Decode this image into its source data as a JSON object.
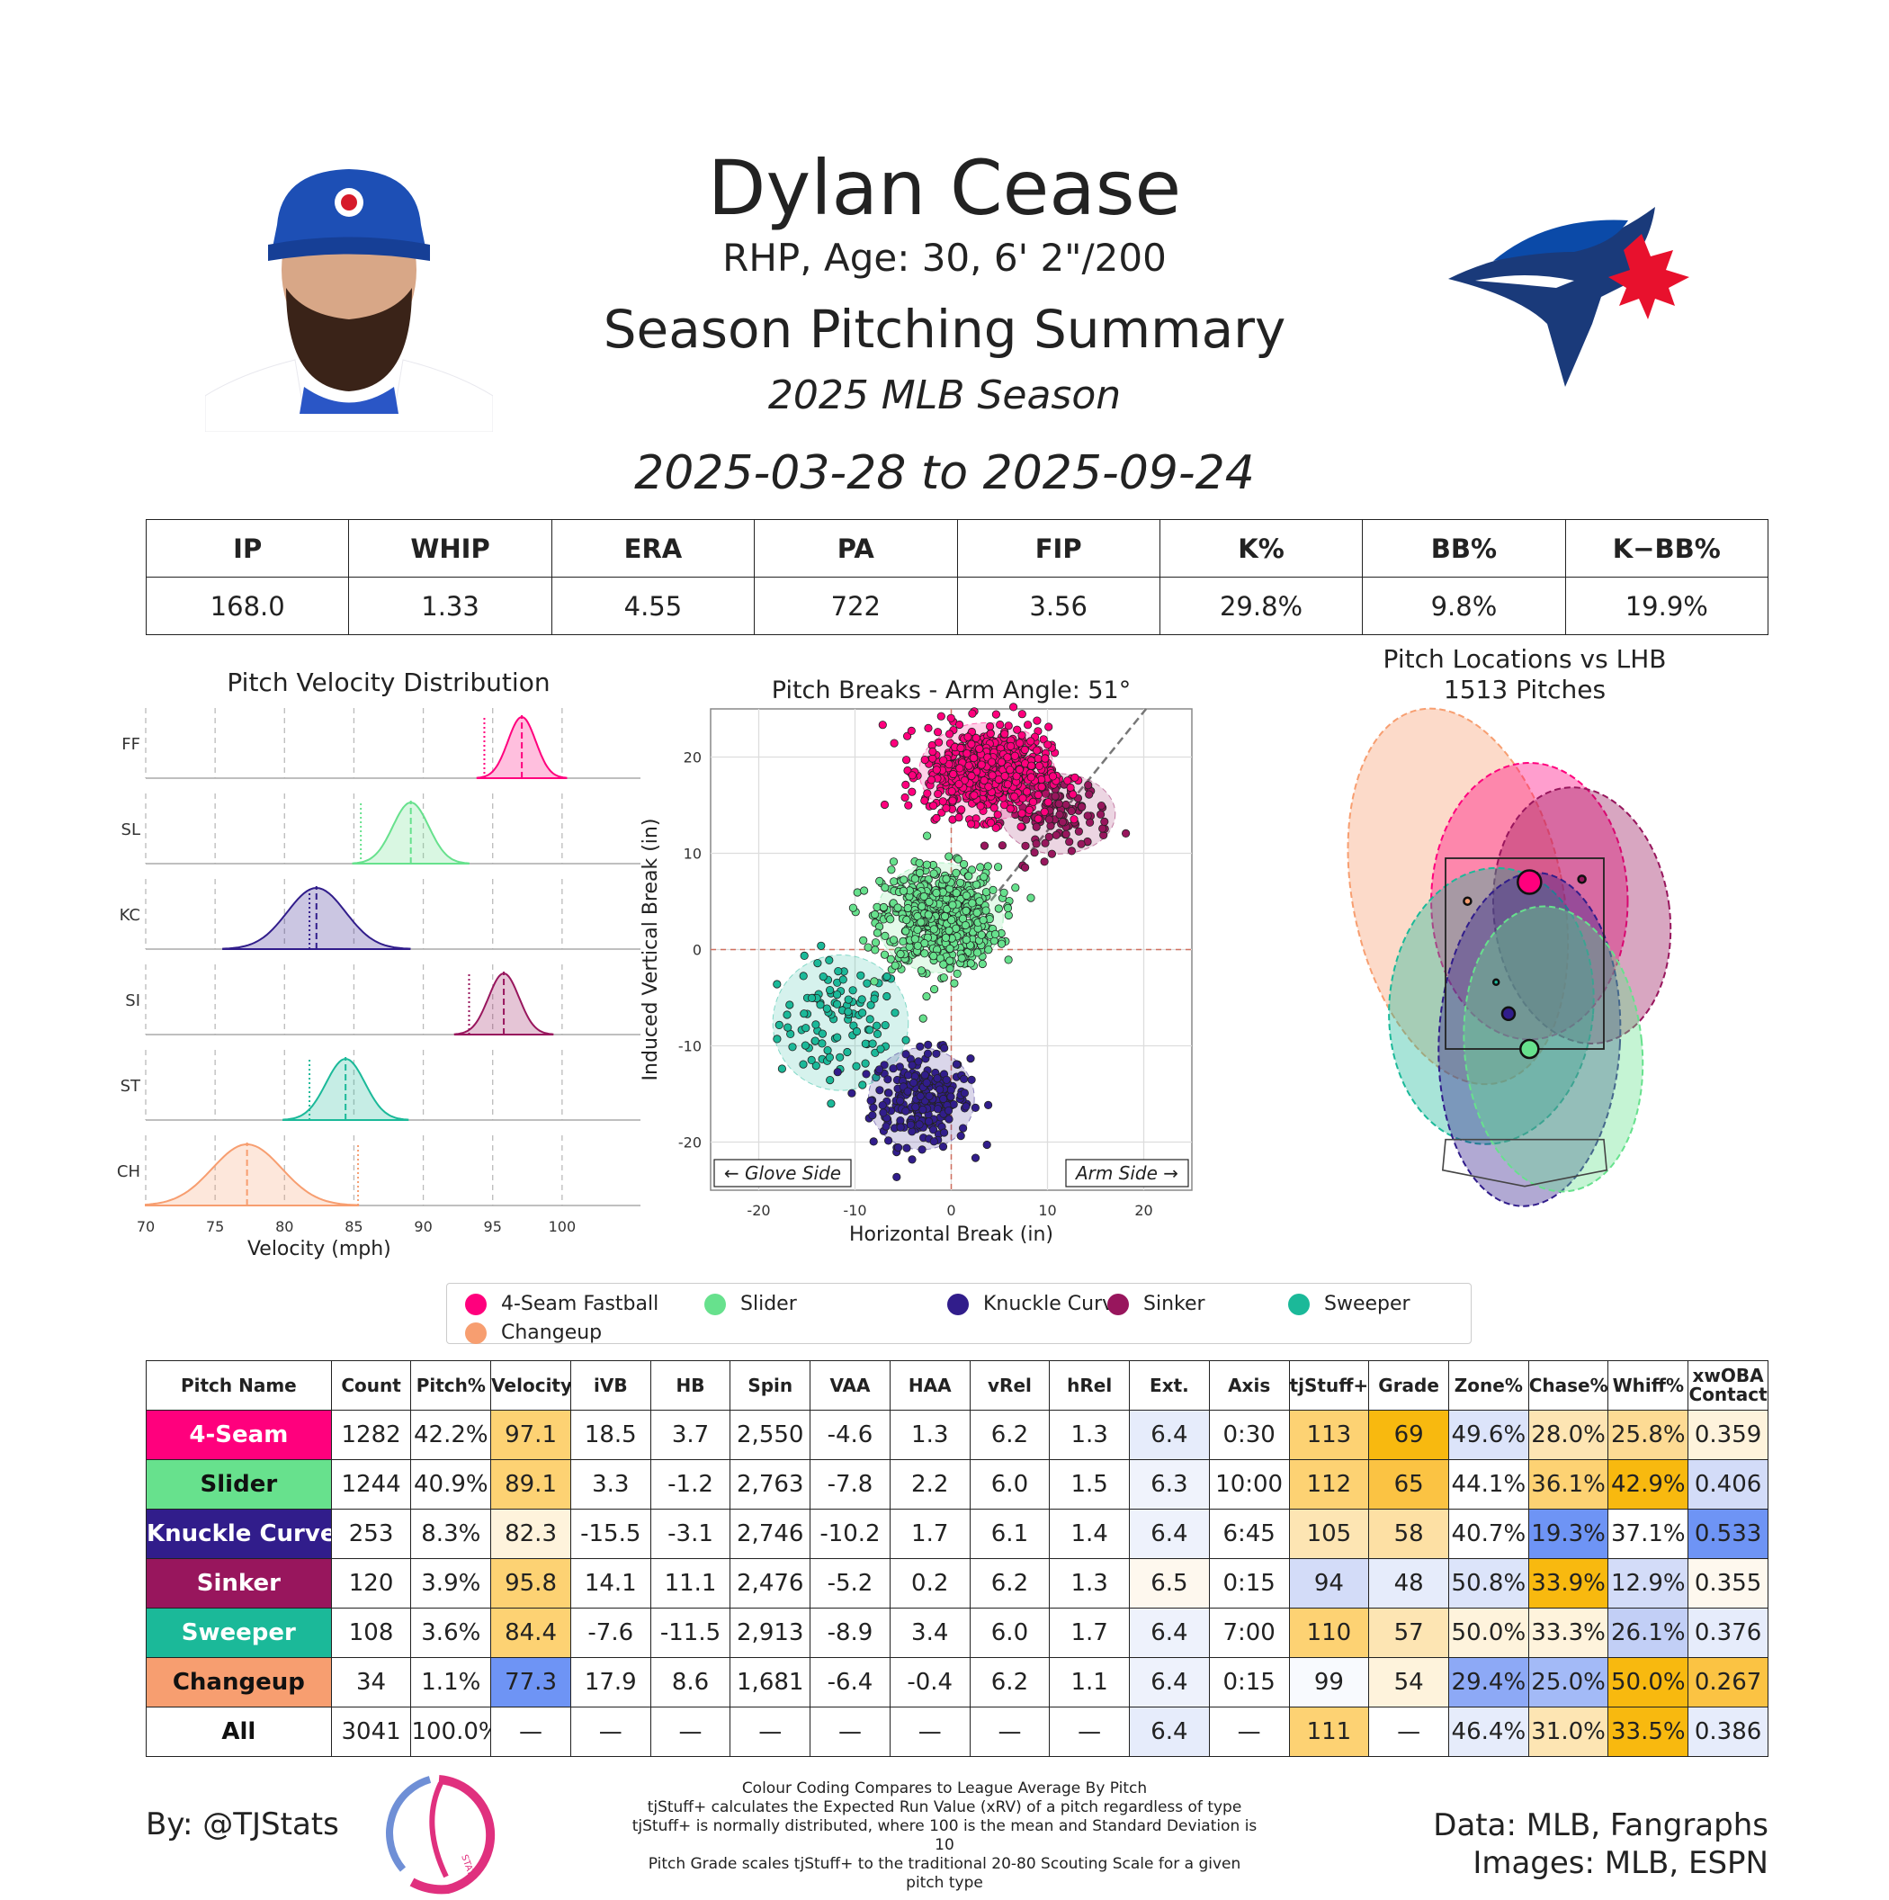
{
  "header": {
    "player_name": "Dylan Cease",
    "player_info": "RHP, Age: 30, 6' 2\"/200",
    "summary_title": "Season Pitching Summary",
    "season_label": "2025 MLB Season",
    "date_range": "2025-03-28 to 2025-09-24"
  },
  "season_stats": {
    "headers": [
      "IP",
      "WHIP",
      "ERA",
      "PA",
      "FIP",
      "K%",
      "BB%",
      "K−BB%"
    ],
    "values": [
      "168.0",
      "1.33",
      "4.55",
      "722",
      "3.56",
      "29.8%",
      "9.8%",
      "19.9%"
    ]
  },
  "pitch_types": [
    {
      "code": "FF",
      "name": "4-Seam Fastball",
      "color": "#FF007D"
    },
    {
      "code": "SL",
      "name": "Slider",
      "color": "#67E18D"
    },
    {
      "code": "KC",
      "name": "Knuckle Curve",
      "color": "#311D8B"
    },
    {
      "code": "SI",
      "name": "Sinker",
      "color": "#98165D"
    },
    {
      "code": "ST",
      "name": "Sweeper",
      "color": "#1BB999"
    },
    {
      "code": "CH",
      "name": "Changeup",
      "color": "#F79E70"
    }
  ],
  "chart_data": [
    {
      "type": "area",
      "title": "Pitch Velocity Distribution",
      "xlabel": "Velocity (mph)",
      "xlim": [
        70,
        105
      ],
      "xticks": [
        70,
        75,
        80,
        85,
        90,
        95,
        100
      ],
      "series": [
        {
          "name": "FF",
          "mean": 97.1,
          "sd": 1.0,
          "league_avg": 94.4
        },
        {
          "name": "SL",
          "mean": 89.1,
          "sd": 1.3,
          "league_avg": 85.5
        },
        {
          "name": "KC",
          "mean": 82.3,
          "sd": 2.1,
          "league_avg": 81.8
        },
        {
          "name": "SI",
          "mean": 95.8,
          "sd": 1.1,
          "league_avg": 93.3
        },
        {
          "name": "ST",
          "mean": 84.4,
          "sd": 1.4,
          "league_avg": 81.8
        },
        {
          "name": "CH",
          "mean": 77.3,
          "sd": 2.5,
          "league_avg": 85.3
        }
      ]
    },
    {
      "type": "scatter",
      "title": "Pitch Breaks - Arm Angle: 51°",
      "xlabel": "Horizontal Break (in)",
      "ylabel": "Induced Vertical Break (in)",
      "xlim": [
        -25,
        25
      ],
      "ylim": [
        -25,
        25
      ],
      "xticks": [
        -20,
        -10,
        0,
        10,
        20
      ],
      "yticks": [
        -20,
        -10,
        0,
        10,
        20
      ],
      "annotations": [
        "← Glove Side",
        "Arm Side →"
      ],
      "arm_angle_deg": 51,
      "clusters": [
        {
          "name": "FF",
          "mean_x": 3.7,
          "mean_y": 18.5,
          "sd_x": 3.2,
          "sd_y": 2.3,
          "n": 700
        },
        {
          "name": "SL",
          "mean_x": -1.2,
          "mean_y": 3.3,
          "sd_x": 3.0,
          "sd_y": 2.6,
          "n": 650
        },
        {
          "name": "KC",
          "mean_x": -3.1,
          "mean_y": -15.5,
          "sd_x": 2.5,
          "sd_y": 2.4,
          "n": 253
        },
        {
          "name": "SI",
          "mean_x": 11.1,
          "mean_y": 14.1,
          "sd_x": 2.7,
          "sd_y": 1.9,
          "n": 120
        },
        {
          "name": "ST",
          "mean_x": -11.5,
          "mean_y": -7.6,
          "sd_x": 3.2,
          "sd_y": 3.2,
          "n": 108
        }
      ]
    },
    {
      "type": "scatter",
      "title": "Pitch Locations vs LHB",
      "subtitle": "1513 Pitches",
      "xlim": [
        -2.0,
        2.0
      ],
      "ylim": [
        0.0,
        5.0
      ],
      "strike_zone": {
        "x": [
          -0.83,
          0.83
        ],
        "z": [
          1.5,
          3.5
        ]
      },
      "points": [
        {
          "name": "FF",
          "x": 0.05,
          "z": 3.25,
          "size": 13
        },
        {
          "name": "SI",
          "x": 0.6,
          "z": 3.28,
          "size": 4
        },
        {
          "name": "CH",
          "x": -0.6,
          "z": 3.05,
          "size": 4
        },
        {
          "name": "SL",
          "x": 0.05,
          "z": 1.5,
          "size": 10
        },
        {
          "name": "KC",
          "x": -0.17,
          "z": 1.87,
          "size": 7
        },
        {
          "name": "ST",
          "x": -0.3,
          "z": 2.2,
          "size": 3
        }
      ],
      "ellipses": [
        {
          "name": "CH",
          "cx": -0.7,
          "cz": 3.1,
          "rx": 1.1,
          "rz": 2.0,
          "rot": -12
        },
        {
          "name": "FF",
          "cx": 0.05,
          "cz": 3.05,
          "rx": 1.03,
          "rz": 1.45,
          "rot": 0
        },
        {
          "name": "SI",
          "cx": 0.6,
          "cz": 2.9,
          "rx": 0.92,
          "rz": 1.35,
          "rot": -8
        },
        {
          "name": "ST",
          "cx": -0.35,
          "cz": 1.95,
          "rx": 1.07,
          "rz": 1.45,
          "rot": 5
        },
        {
          "name": "KC",
          "cx": 0.05,
          "cz": 1.6,
          "rx": 0.95,
          "rz": 1.75,
          "rot": 3
        },
        {
          "name": "SL",
          "cx": 0.3,
          "cz": 1.5,
          "rx": 0.93,
          "rz": 1.5,
          "rot": -6
        }
      ]
    }
  ],
  "pitch_table": {
    "headers": [
      "Pitch Name",
      "Count",
      "Pitch%",
      "Velocity",
      "iVB",
      "HB",
      "Spin",
      "VAA",
      "HAA",
      "vRel",
      "hRel",
      "Ext.",
      "Axis",
      "tjStuff+",
      "Grade",
      "Zone%",
      "Chase%",
      "Whiff%",
      "xwOBA Contact"
    ],
    "rows": [
      {
        "name": "4-Seam",
        "color": "#FF007D",
        "text": "#ffffff",
        "cells": [
          "1282",
          "42.2%",
          "97.1",
          "18.5",
          "3.7",
          "2,550",
          "-4.6",
          "1.3",
          "6.2",
          "1.3",
          "6.4",
          "0:30",
          "113",
          "69",
          "49.6%",
          "28.0%",
          "25.8%",
          "0.359"
        ],
        "bg": [
          "#fff",
          "#fff",
          "#FDD273",
          "#fff",
          "#fff",
          "#fff",
          "#fff",
          "#fff",
          "#fff",
          "#fff",
          "#E6ECFB",
          "#fff",
          "#FDD273",
          "#F8B90F",
          "#DCE4FA",
          "#FDE5B3",
          "#FDDB94",
          "#FEF3DC"
        ]
      },
      {
        "name": "Slider",
        "color": "#67E18D",
        "text": "#111111",
        "cells": [
          "1244",
          "40.9%",
          "89.1",
          "3.3",
          "-1.2",
          "2,763",
          "-7.8",
          "2.2",
          "6.0",
          "1.5",
          "6.3",
          "10:00",
          "112",
          "65",
          "44.1%",
          "36.1%",
          "42.9%",
          "0.406"
        ],
        "bg": [
          "#fff",
          "#fff",
          "#FDD273",
          "#fff",
          "#fff",
          "#fff",
          "#fff",
          "#fff",
          "#fff",
          "#fff",
          "#F0F3FC",
          "#fff",
          "#FDD273",
          "#FBC343",
          "#fff",
          "#FDD273",
          "#F8B90F",
          "#D3DCF8"
        ]
      },
      {
        "name": "Knuckle Curve",
        "color": "#311D8B",
        "text": "#ffffff",
        "cells": [
          "253",
          "8.3%",
          "82.3",
          "-15.5",
          "-3.1",
          "2,746",
          "-10.2",
          "1.7",
          "6.1",
          "1.4",
          "6.4",
          "6:45",
          "105",
          "58",
          "40.7%",
          "19.3%",
          "37.1%",
          "0.533"
        ],
        "bg": [
          "#fff",
          "#fff",
          "#FEF3DC",
          "#fff",
          "#fff",
          "#fff",
          "#fff",
          "#fff",
          "#fff",
          "#fff",
          "#EEF2FC",
          "#fff",
          "#FDE5B3",
          "#FDE0A4",
          "#fff",
          "#6E94F5",
          "#fff",
          "#6E94F5"
        ]
      },
      {
        "name": "Sinker",
        "color": "#98165D",
        "text": "#ffffff",
        "cells": [
          "120",
          "3.9%",
          "95.8",
          "14.1",
          "11.1",
          "2,476",
          "-5.2",
          "0.2",
          "6.2",
          "1.3",
          "6.5",
          "0:15",
          "94",
          "48",
          "50.8%",
          "33.9%",
          "12.9%",
          "0.355"
        ],
        "bg": [
          "#fff",
          "#fff",
          "#FDD273",
          "#fff",
          "#fff",
          "#fff",
          "#fff",
          "#fff",
          "#fff",
          "#fff",
          "#FEF8EE",
          "#fff",
          "#D3DCF8",
          "#E6ECFB",
          "#DCE4FA",
          "#F8B90F",
          "#D3DCF8",
          "#FEF8EE"
        ]
      },
      {
        "name": "Sweeper",
        "color": "#1BB999",
        "text": "#ffffff",
        "cells": [
          "108",
          "3.6%",
          "84.4",
          "-7.6",
          "-11.5",
          "2,913",
          "-8.9",
          "3.4",
          "6.0",
          "1.7",
          "6.4",
          "7:00",
          "110",
          "57",
          "50.0%",
          "33.3%",
          "26.1%",
          "0.376"
        ],
        "bg": [
          "#fff",
          "#fff",
          "#FDD273",
          "#fff",
          "#fff",
          "#fff",
          "#fff",
          "#fff",
          "#fff",
          "#fff",
          "#EEF2FC",
          "#fff",
          "#FDD273",
          "#FDE5B3",
          "#FEF3DC",
          "#FEF3DC",
          "#C2CFF6",
          "#E6ECFB"
        ]
      },
      {
        "name": "Changeup",
        "color": "#F79E70",
        "text": "#111111",
        "cells": [
          "34",
          "1.1%",
          "77.3",
          "17.9",
          "8.6",
          "1,681",
          "-6.4",
          "-0.4",
          "6.2",
          "1.1",
          "6.4",
          "0:15",
          "99",
          "54",
          "29.4%",
          "25.0%",
          "50.0%",
          "0.267"
        ],
        "bg": [
          "#fff",
          "#fff",
          "#6E94F5",
          "#fff",
          "#fff",
          "#fff",
          "#fff",
          "#fff",
          "#fff",
          "#fff",
          "#EEF2FC",
          "#fff",
          "#F8FAFE",
          "#FEF3DC",
          "#8DA9F6",
          "#A3BAF7",
          "#F8B90F",
          "#FBC343"
        ]
      },
      {
        "name": "All",
        "color": "#ffffff",
        "text": "#111111",
        "cells": [
          "3041",
          "100.0%",
          "—",
          "—",
          "—",
          "—",
          "—",
          "—",
          "—",
          "—",
          "6.4",
          "—",
          "111",
          "—",
          "46.4%",
          "31.0%",
          "33.5%",
          "0.386"
        ],
        "bg": [
          "#fff",
          "#fff",
          "#fff",
          "#fff",
          "#fff",
          "#fff",
          "#fff",
          "#fff",
          "#fff",
          "#fff",
          "#E6ECFB",
          "#fff",
          "#FDD273",
          "#fff",
          "#E6ECFB",
          "#FDE5B3",
          "#F8B90F",
          "#E6ECFB"
        ]
      }
    ]
  },
  "footer": {
    "byline": "By: @TJStats",
    "logo_text": "STATS",
    "notes": [
      "Colour Coding Compares to League Average By Pitch",
      "tjStuff+ calculates the Expected Run Value (xRV) of a pitch regardless of type",
      "tjStuff+ is normally distributed, where 100 is the mean and Standard Deviation is 10",
      "Pitch Grade scales tjStuff+ to the traditional 20-80 Scouting Scale for a given pitch type"
    ],
    "data_credit": "Data: MLB, Fangraphs",
    "image_credit": "Images: MLB, ESPN"
  },
  "colors": {
    "grid": "#cccccc",
    "text": "#222222"
  }
}
